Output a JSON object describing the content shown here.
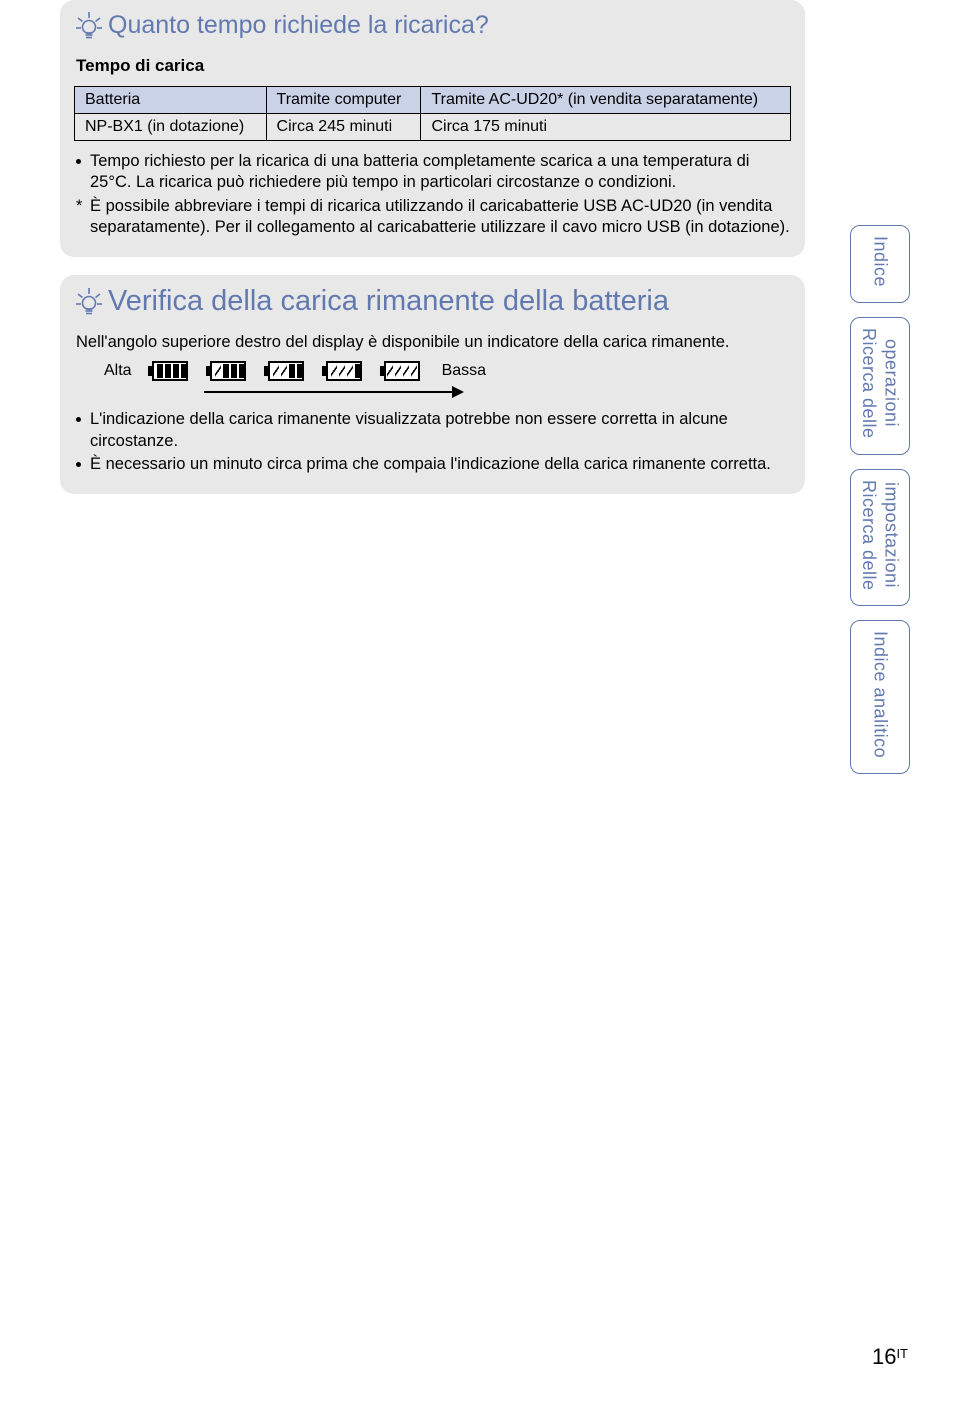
{
  "colors": {
    "accent": "#6279b0",
    "tip_bg": "#e8e8e8",
    "table_header_bg": "#cad2e7",
    "border": "#000000",
    "page_bg": "#ffffff"
  },
  "tip1": {
    "title": "Quanto tempo richiede la ricarica?",
    "subhead": "Tempo di carica",
    "table": {
      "headers": [
        "Batteria",
        "Tramite computer",
        "Tramite AC-UD20* (in vendita separatamente)"
      ],
      "row": [
        "NP-BX1 (in dotazione)",
        "Circa 245 minuti",
        "Circa 175 minuti"
      ]
    },
    "notes": [
      "Tempo richiesto per la ricarica di una batteria completamente scarica a una temperatura di 25°C. La ricarica può richiedere più tempo in particolari circostanze o condizioni.",
      "È possibile abbreviare i tempi di ricarica utilizzando il caricabatterie USB AC-UD20 (in vendita separatamente). Per il collegamento al caricabatterie utilizzare il cavo micro USB (in dotazione)."
    ]
  },
  "tip2": {
    "title": "Verifica della carica rimanente della batteria",
    "intro": "Nell'angolo superiore destro del display è disponibile un indicatore della carica rimanente.",
    "high_label": "Alta",
    "low_label": "Bassa",
    "battery_levels": [
      4,
      3,
      2,
      1,
      0
    ],
    "notes": [
      "L'indicazione della carica rimanente visualizzata potrebbe non essere corretta in alcune circostanze.",
      "È necessario un minuto circa prima che compaia l'indicazione della carica rimanente corretta."
    ]
  },
  "tabs": [
    {
      "lines": [
        "Indice"
      ]
    },
    {
      "lines": [
        "operazioni",
        "Ricerca delle"
      ]
    },
    {
      "lines": [
        "impostazioni",
        "Ricerca delle"
      ]
    },
    {
      "lines": [
        "Indice analitico"
      ]
    }
  ],
  "page": {
    "number": "16",
    "suffix": "IT"
  }
}
